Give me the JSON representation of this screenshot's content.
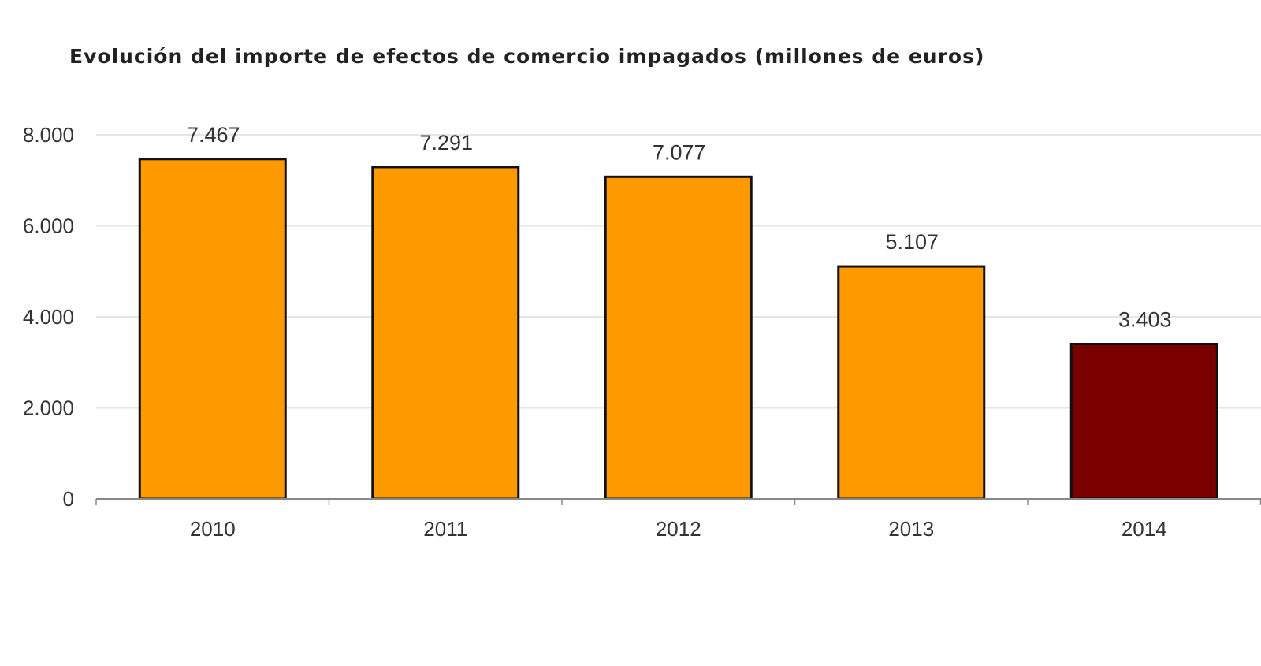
{
  "chart_data": {
    "type": "bar",
    "title": "Evolución del importe de efectos de comercio impagados (millones de euros)",
    "xlabel": "",
    "ylabel": "",
    "categories": [
      "2010",
      "2011",
      "2012",
      "2013",
      "2014"
    ],
    "values": [
      7467,
      7291,
      7077,
      5107,
      3403
    ],
    "data_labels": [
      "7.467",
      "7.291",
      "7.077",
      "5.107",
      "3.403"
    ],
    "bar_colors": [
      "#FF9900",
      "#FF9900",
      "#FF9900",
      "#FF9900",
      "#7A0000"
    ],
    "ylim": [
      0,
      8000
    ],
    "yticks": [
      0,
      2000,
      4000,
      6000,
      8000
    ],
    "ytick_labels": [
      "0",
      "2.000",
      "4.000",
      "6.000",
      "8.000"
    ],
    "grid": true,
    "legend": "none"
  }
}
